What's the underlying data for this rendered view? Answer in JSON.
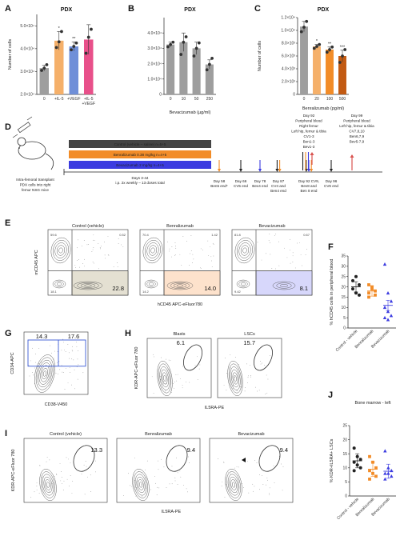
{
  "colors": {
    "control": "#9e9e9e",
    "il5": "#f5b06a",
    "vegf": "#6f8fd8",
    "il5vegf": "#e8508a",
    "benra": "#f28c28",
    "beva": "#3c3ce0",
    "darkorange": "#c25a12",
    "black": "#222222",
    "topbar": "#444444"
  },
  "panels": {
    "A": {
      "letter": "A",
      "title": "PDX",
      "ylabel": "Number of cells",
      "yticks": [
        "2.0×10⁴",
        "3.0×10⁴",
        "4.0×10⁴",
        "5.0×10⁴"
      ],
      "xticks": [
        "0",
        "+IL-5",
        "+VEGF",
        "+IL-5",
        "+VEGF"
      ],
      "sig": [
        "*",
        "**"
      ]
    },
    "B": {
      "letter": "B",
      "title": "PDX",
      "yticks": [
        "0",
        "1.0×10⁴",
        "2.0×10⁴",
        "3.0×10⁴",
        "4.0×10⁴"
      ],
      "xticks": [
        "0",
        "10",
        "50",
        "250"
      ],
      "xlabel": "Bevacizumab (µg/ml)"
    },
    "C": {
      "letter": "C",
      "title": "PDX",
      "ylabel": "Number of cells",
      "yticks": [
        "0",
        "2.0×10³",
        "4.0×10³",
        "6.0×10³",
        "8.0×10³",
        "1.0×10⁴",
        "1.2×10⁴"
      ],
      "xticks": [
        "0",
        "20",
        "100",
        "500"
      ],
      "xlabel": "Benralizumab (pg/ml)",
      "sig": [
        "*",
        "**",
        "***"
      ]
    },
    "D": {
      "letter": "D",
      "mouse_caption": [
        "Intra-femoral transplant",
        "PDX cells into right",
        "femur NSG mice"
      ],
      "bars": [
        "Control (vehicle – saline) n=5+5",
        "Benralizumab 0.38 mg/kg n=4+5",
        "Bevacizumab 2 mg/kg n=4+5"
      ],
      "dosing": [
        "Days 3-44",
        "i.p. 2x weekly – 13 doses total"
      ],
      "events": [
        {
          "lines": [
            "Day 58",
            "Ben5 end*"
          ]
        },
        {
          "lines": [
            "Day 66",
            "CV5 end"
          ]
        },
        {
          "lines": [
            "Day 78",
            "Bev4 end"
          ]
        },
        {
          "lines": [
            "Day 87",
            "CV4 and",
            "Ben4 end"
          ]
        },
        {
          "lines": [
            "Day 92 CV9,",
            "Bev8 and",
            "Ben 8 end"
          ]
        },
        {
          "lines": [
            "Day 96",
            "CV6 end"
          ]
        }
      ],
      "top92": [
        "Day 92",
        "Peripheral blood",
        "Right femur",
        "Left hip, femur & tibia",
        "CV1-3",
        "Ben1-3",
        "Bev1-3"
      ],
      "top99": [
        "Day 99",
        "Peripheral blood",
        "Left hip, femur & tibia",
        "CV7,8,10",
        "Ben6,7,9",
        "Bev5-7,9"
      ]
    },
    "E": {
      "letter": "E",
      "titles": [
        "Control (vehicle)",
        "Benralizumab",
        "Bevacizumab"
      ],
      "ylabel": "mCD45 APC",
      "xlabel": "hCD45 APC-eFluor780",
      "ul": [
        "59.6",
        "70.4",
        "81.8"
      ],
      "ur": [
        "0.52",
        "1.42",
        "0.67"
      ],
      "ll": [
        "18.1",
        "14.2",
        "9.42"
      ],
      "lr": [
        "22.8",
        "14.0",
        "8.1"
      ]
    },
    "F": {
      "letter": "F",
      "ylabel": "% hCD45 cells in peripheral blood",
      "yticks": [
        "0",
        "5",
        "10",
        "15",
        "20",
        "25",
        "30",
        "35"
      ],
      "groups": [
        "Control - vehicle",
        "Benralizumab",
        "Bevacizumab"
      ]
    },
    "G": {
      "letter": "G",
      "ylabel": "CD34-APC",
      "xlabel": "CD38-V450",
      "left_pct": "14.3",
      "right_pct": "17.6"
    },
    "H": {
      "letter": "H",
      "titles": [
        "Blasts",
        "LSCs"
      ],
      "ylabel": "KDR-APC-eFluor 780",
      "xlabel": "IL5RA-PE",
      "pcts": [
        "6.1",
        "15.7"
      ]
    },
    "I": {
      "letter": "I",
      "titles": [
        "Control (vehicle)",
        "Benralizumab",
        "Bevacizumab"
      ],
      "ylabel": "KDR-APC-eFluor 780",
      "xlabel": "IL5RA-PE",
      "pcts": [
        "13.3",
        "9.4",
        "9.4"
      ]
    },
    "J": {
      "letter": "J",
      "title": "Bone marrow - left",
      "ylabel": "% KDR+IL5RA+ LSCs",
      "yticks": [
        "0",
        "5",
        "10",
        "15",
        "20",
        "25"
      ],
      "groups": [
        "Control - vehicle",
        "Benralizumab",
        "Bevacizumab"
      ]
    }
  },
  "chart_data": [
    {
      "panel": "A",
      "type": "bar",
      "title": "PDX",
      "ylabel": "Number of cells",
      "categories": [
        "0",
        "+IL-5",
        "+VEGF",
        "+IL-5 +VEGF"
      ],
      "values": [
        31500,
        43500,
        41000,
        44000
      ],
      "errors": [
        1200,
        4000,
        2000,
        6500
      ],
      "points": [
        [
          30500,
          31500,
          33000
        ],
        [
          40500,
          43000,
          47500
        ],
        [
          39500,
          41000,
          42500
        ],
        [
          38000,
          45000,
          48500
        ]
      ],
      "ylim": [
        20000,
        55000
      ]
    },
    {
      "panel": "B",
      "type": "bar",
      "title": "PDX",
      "xlabel": "Bevacizumab (µg/ml)",
      "categories": [
        "0",
        "10",
        "50",
        "250"
      ],
      "values": [
        32500,
        34000,
        30000,
        19500
      ],
      "errors": [
        1500,
        6000,
        4000,
        3000
      ],
      "points": [
        [
          31000,
          32500,
          34000
        ],
        [
          26000,
          34000,
          37500
        ],
        [
          25000,
          30000,
          33500
        ],
        [
          16000,
          19500,
          23500
        ]
      ],
      "ylim": [
        0,
        50000
      ]
    },
    {
      "panel": "C",
      "type": "bar",
      "title": "PDX",
      "ylabel": "Number of cells",
      "xlabel": "Benralizumab (pg/ml)",
      "categories": [
        "0",
        "20",
        "100",
        "500"
      ],
      "values": [
        10600,
        7500,
        7000,
        6000
      ],
      "errors": [
        800,
        300,
        400,
        900
      ],
      "points": [
        [
          9800,
          10500,
          11400
        ],
        [
          7200,
          7500,
          7800
        ],
        [
          6600,
          7000,
          7400
        ],
        [
          5000,
          6000,
          7000
        ]
      ],
      "ylim": [
        0,
        12000
      ]
    },
    {
      "panel": "F",
      "type": "scatter",
      "ylabel": "% hCD45 cells in peripheral blood",
      "categories": [
        "Control - vehicle",
        "Benralizumab",
        "Bevacizumab"
      ],
      "points": [
        [
          23,
          25,
          21,
          19,
          17,
          16
        ],
        [
          21,
          20,
          18,
          17,
          19,
          16,
          15
        ],
        [
          31,
          17,
          13,
          10,
          8,
          6,
          5,
          4
        ]
      ],
      "means": [
        20,
        18,
        11
      ],
      "ylim": [
        0,
        35
      ]
    },
    {
      "panel": "J",
      "type": "scatter",
      "title": "Bone marrow - left",
      "ylabel": "% KDR+IL5RA+ LSCs",
      "categories": [
        "Control - vehicle",
        "Benralizumab",
        "Bevacizumab"
      ],
      "points": [
        [
          17,
          14,
          13,
          12,
          11,
          10,
          9
        ],
        [
          14,
          12,
          10,
          9,
          8,
          7,
          6
        ],
        [
          16,
          10,
          9,
          8,
          8,
          7,
          6
        ]
      ],
      "means": [
        12.5,
        9.5,
        8.8
      ],
      "ylim": [
        0,
        25
      ]
    }
  ]
}
